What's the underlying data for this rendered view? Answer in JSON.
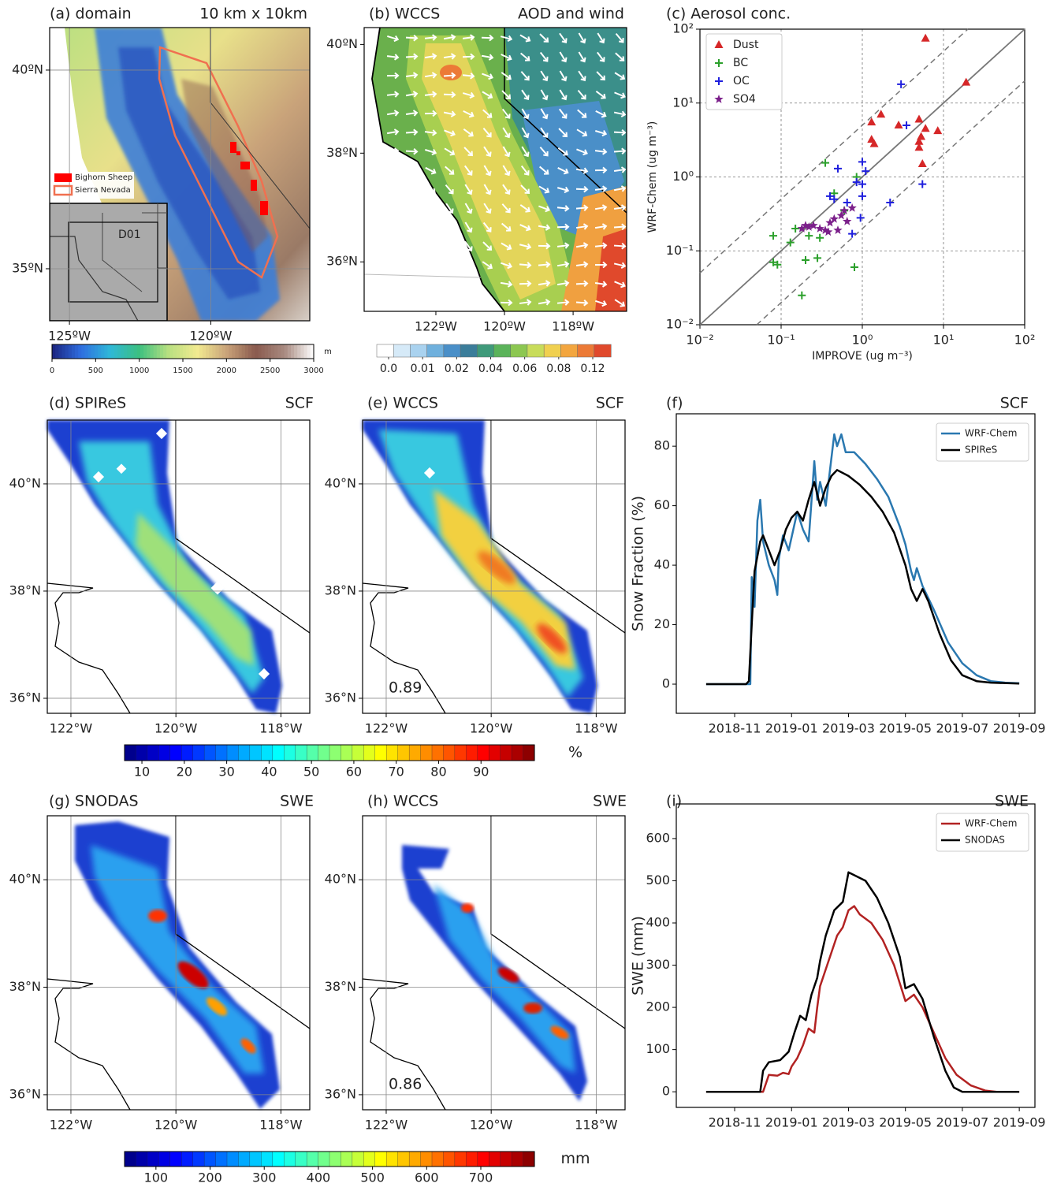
{
  "chart_data": [
    {
      "type": "map",
      "title": "(a) domain",
      "subtitle": "10 km x 10km",
      "xlim": [
        -125.7,
        -116.5
      ],
      "ylim": [
        33.69,
        41.07
      ],
      "grid": true,
      "xticks": [
        {
          "value": -125,
          "label": "125ºW"
        },
        {
          "value": -120,
          "label": "120ºW"
        }
      ],
      "yticks": [
        {
          "value": 40,
          "label": "40ºN"
        },
        {
          "value": 35,
          "label": "35ºN"
        }
      ],
      "legend": [
        {
          "name": "Bighorn Sheep",
          "color": "#ff0000",
          "marker": "fill"
        },
        {
          "name": "Sierra Nevada",
          "color": "#f07050",
          "marker": "outline"
        }
      ],
      "annotations": [
        "D01"
      ]
    },
    {
      "type": "map",
      "title": "(b) WCCS",
      "subtitle": "AOD and wind",
      "xlim": [
        -124.09,
        -116.44
      ],
      "ylim": [
        35.09,
        40.31
      ],
      "grid": false,
      "xticks": [
        {
          "value": -122,
          "label": "122ºW"
        },
        {
          "value": -120,
          "label": "120ºW"
        },
        {
          "value": -118,
          "label": "118ºW"
        }
      ],
      "yticks": [
        {
          "value": 40,
          "label": "40ºN"
        },
        {
          "value": 38,
          "label": "38ºN"
        },
        {
          "value": 36,
          "label": "36ºN"
        }
      ]
    },
    {
      "type": "scatter",
      "title": "(c) Aerosol conc.",
      "x_label": "IMPROVE (ug m⁻³)",
      "y_label": "WRF-Chem (ug m⁻³)",
      "log": true,
      "grid": true,
      "legend": "upper left",
      "xlim": [
        0.01,
        100
      ],
      "ylim": [
        0.01,
        100
      ],
      "xticks": [
        {
          "value": 0.01,
          "label": "10⁻²"
        },
        {
          "value": 0.1,
          "label": "10⁻¹"
        },
        {
          "value": 1,
          "label": "10⁰"
        },
        {
          "value": 10,
          "label": "10¹"
        },
        {
          "value": 100,
          "label": "10²"
        }
      ],
      "yticks": [
        {
          "value": 0.01,
          "label": "10⁻²"
        },
        {
          "value": 0.1,
          "label": "10⁻¹"
        },
        {
          "value": 1,
          "label": "10⁰"
        },
        {
          "value": 10,
          "label": "10¹"
        },
        {
          "value": 100,
          "label": "10²"
        }
      ],
      "series": [
        {
          "name": "Dust",
          "color": "#d62728",
          "marker": "triangle",
          "x": [
            6,
            19,
            1.3,
            1.7,
            1.3,
            1.4,
            2.8,
            5,
            5,
            5.3,
            6,
            8.5,
            5,
            5.5
          ],
          "values": [
            75,
            19,
            5.5,
            7,
            3.2,
            2.8,
            5,
            6,
            3,
            3.5,
            4.5,
            4.2,
            2.5,
            1.5
          ]
        },
        {
          "name": "BC",
          "color": "#2ca02c",
          "marker": "plus",
          "x": [
            0.08,
            0.08,
            0.09,
            0.13,
            0.15,
            0.18,
            0.2,
            0.22,
            0.28,
            0.3,
            0.35,
            0.45,
            0.6,
            0.8,
            0.85
          ],
          "values": [
            0.16,
            0.07,
            0.065,
            0.13,
            0.2,
            0.025,
            0.075,
            0.16,
            0.08,
            0.15,
            1.55,
            0.6,
            0.35,
            0.06,
            1.0
          ]
        },
        {
          "name": "OC",
          "color": "#1f1fdd",
          "marker": "plus",
          "x": [
            0.4,
            0.45,
            0.5,
            0.65,
            0.75,
            0.85,
            1.0,
            1.0,
            1.0,
            1.1,
            2.2,
            3,
            3.5,
            5.5,
            0.95
          ],
          "values": [
            0.55,
            0.5,
            1.3,
            0.45,
            0.17,
            0.85,
            0.8,
            0.55,
            1.6,
            1.2,
            0.45,
            18,
            5,
            0.8,
            0.28
          ]
        },
        {
          "name": "SO4",
          "color": "#7b1f8a",
          "marker": "star",
          "x": [
            0.18,
            0.2,
            0.22,
            0.25,
            0.3,
            0.35,
            0.4,
            0.45,
            0.5,
            0.55,
            0.6,
            0.65,
            0.75,
            0.38
          ],
          "values": [
            0.2,
            0.22,
            0.21,
            0.22,
            0.2,
            0.19,
            0.24,
            0.27,
            0.19,
            0.3,
            0.35,
            0.25,
            0.38,
            0.18
          ]
        }
      ]
    },
    {
      "type": "map",
      "title": "(d) SPIReS",
      "subtitle": "SCF",
      "xlim": [
        -122.45,
        -117.45
      ],
      "ylim": [
        35.72,
        41.19
      ],
      "grid": true,
      "xticks": [
        {
          "value": -122,
          "label": "122°W"
        },
        {
          "value": -120,
          "label": "120°W"
        },
        {
          "value": -118,
          "label": "118°W"
        }
      ],
      "yticks": [
        {
          "value": 40,
          "label": "40°N"
        },
        {
          "value": 38,
          "label": "38°N"
        },
        {
          "value": 36,
          "label": "36°N"
        }
      ]
    },
    {
      "type": "map",
      "title": "(e) WCCS",
      "subtitle": "SCF",
      "xlim": [
        -122.45,
        -117.45
      ],
      "ylim": [
        35.72,
        41.19
      ],
      "grid": true,
      "xticks": [
        {
          "value": -122,
          "label": "122°W"
        },
        {
          "value": -120,
          "label": "120°W"
        },
        {
          "value": -118,
          "label": "118°W"
        }
      ],
      "yticks": [
        {
          "value": 40,
          "label": "40°N"
        },
        {
          "value": 38,
          "label": "38°N"
        },
        {
          "value": 36,
          "label": "36°N"
        }
      ],
      "annotations": [
        "0.89"
      ]
    },
    {
      "type": "line",
      "title": "(f)",
      "subtitle": "SCF",
      "y_label": "Snow Fraction (%)",
      "legend": "upper right",
      "xlim": [
        7.95,
        20.55
      ],
      "ylim": [
        -9.8,
        90.9
      ],
      "xticks": [
        {
          "value": 10,
          "label": "2018-11"
        },
        {
          "value": 12,
          "label": "2019-01"
        },
        {
          "value": 14,
          "label": "2019-03"
        },
        {
          "value": 16,
          "label": "2019-05"
        },
        {
          "value": 18,
          "label": "2019-07"
        },
        {
          "value": 20,
          "label": "2019-09"
        }
      ],
      "yticks": [
        0,
        20,
        40,
        60,
        80
      ],
      "series": [
        {
          "name": "WRF-Chem",
          "color": "#2a78b0",
          "x": [
            9,
            10.55,
            10.6,
            10.7,
            10.8,
            10.9,
            11,
            11.2,
            11.4,
            11.5,
            11.55,
            11.7,
            11.9,
            12.2,
            12.4,
            12.6,
            12.8,
            12.9,
            13,
            13.2,
            13.35,
            13.5,
            13.6,
            13.75,
            13.9,
            14.2,
            14.6,
            15,
            15.4,
            15.8,
            16,
            16.2,
            16.3,
            16.4,
            16.6,
            17,
            17.5,
            18,
            18.5,
            19,
            19.5,
            20
          ],
          "values": [
            0,
            0,
            36,
            26,
            55,
            62,
            48,
            40,
            35,
            30,
            42,
            50,
            45,
            58,
            52,
            48,
            75,
            62,
            68,
            60,
            72,
            84,
            80,
            84,
            78,
            78,
            74,
            69,
            63,
            53,
            47,
            38,
            35,
            39,
            33,
            25,
            14,
            7,
            3,
            1,
            0.5,
            0.3
          ]
        },
        {
          "name": "SPIReS",
          "color": "#000000",
          "x": [
            9,
            10.4,
            10.5,
            10.6,
            10.7,
            10.9,
            11,
            11.2,
            11.4,
            11.6,
            11.8,
            12,
            12.2,
            12.4,
            12.6,
            12.8,
            13,
            13.2,
            13.4,
            13.6,
            14,
            14.4,
            14.8,
            15.2,
            15.6,
            16,
            16.2,
            16.4,
            16.6,
            16.8,
            17.2,
            17.6,
            18,
            18.5,
            19,
            20
          ],
          "values": [
            0,
            0,
            1,
            20,
            38,
            48,
            50,
            45,
            40,
            45,
            52,
            56,
            58,
            55,
            62,
            68,
            60,
            66,
            70,
            72,
            70,
            67,
            63,
            58,
            51,
            40,
            32,
            28,
            32,
            28,
            17,
            8,
            3,
            1,
            0.5,
            0.2
          ]
        }
      ]
    },
    {
      "type": "map",
      "title": "(g) SNODAS",
      "subtitle": "SWE",
      "xlim": [
        -122.45,
        -117.45
      ],
      "ylim": [
        35.72,
        41.19
      ],
      "grid": true,
      "xticks": [
        {
          "value": -122,
          "label": "122°W"
        },
        {
          "value": -120,
          "label": "120°W"
        },
        {
          "value": -118,
          "label": "118°W"
        }
      ],
      "yticks": [
        {
          "value": 40,
          "label": "40°N"
        },
        {
          "value": 38,
          "label": "38°N"
        },
        {
          "value": 36,
          "label": "36°N"
        }
      ]
    },
    {
      "type": "map",
      "title": "(h) WCCS",
      "subtitle": "SWE",
      "xlim": [
        -122.45,
        -117.45
      ],
      "ylim": [
        35.72,
        41.19
      ],
      "grid": true,
      "xticks": [
        {
          "value": -122,
          "label": "122°W"
        },
        {
          "value": -120,
          "label": "120°W"
        },
        {
          "value": -118,
          "label": "118°W"
        }
      ],
      "yticks": [
        {
          "value": 40,
          "label": "40°N"
        },
        {
          "value": 38,
          "label": "38°N"
        },
        {
          "value": 36,
          "label": "36°N"
        }
      ],
      "annotations": [
        "0.86"
      ]
    },
    {
      "type": "line",
      "title": "(i)",
      "subtitle": "SWE",
      "y_label": "SWE (mm)",
      "legend": "upper right",
      "xlim": [
        7.95,
        20.55
      ],
      "ylim": [
        -37,
        682
      ],
      "xticks": [
        {
          "value": 10,
          "label": "2018-11"
        },
        {
          "value": 12,
          "label": "2019-01"
        },
        {
          "value": 14,
          "label": "2019-03"
        },
        {
          "value": 16,
          "label": "2019-05"
        },
        {
          "value": 18,
          "label": "2019-07"
        },
        {
          "value": 20,
          "label": "2019-09"
        }
      ],
      "yticks": [
        0,
        100,
        200,
        300,
        400,
        500,
        600
      ],
      "series": [
        {
          "name": "WRF-Chem",
          "color": "#b22222",
          "x": [
            9,
            11,
            11.1,
            11.2,
            11.5,
            11.7,
            11.9,
            12,
            12.2,
            12.4,
            12.6,
            12.8,
            12.9,
            13,
            13.2,
            13.4,
            13.6,
            13.8,
            14,
            14.2,
            14.4,
            14.8,
            15.2,
            15.6,
            16,
            16.3,
            16.6,
            17,
            17.4,
            17.8,
            18.3,
            18.8,
            19.2,
            20
          ],
          "values": [
            0,
            0,
            20,
            40,
            38,
            45,
            42,
            60,
            80,
            110,
            150,
            140,
            200,
            250,
            290,
            330,
            370,
            390,
            430,
            440,
            420,
            400,
            360,
            300,
            215,
            230,
            200,
            140,
            80,
            40,
            15,
            3,
            0,
            0
          ]
        },
        {
          "name": "SNODAS",
          "color": "#000000",
          "x": [
            9,
            10.9,
            11,
            11.2,
            11.6,
            11.9,
            12.1,
            12.3,
            12.5,
            12.7,
            12.9,
            13,
            13.2,
            13.5,
            13.8,
            14,
            14.3,
            14.6,
            15,
            15.4,
            15.8,
            16,
            16.3,
            16.6,
            17,
            17.4,
            17.7,
            18,
            20
          ],
          "values": [
            0,
            0,
            50,
            70,
            75,
            95,
            140,
            180,
            170,
            230,
            270,
            310,
            370,
            430,
            450,
            520,
            510,
            500,
            460,
            400,
            320,
            245,
            255,
            220,
            130,
            50,
            10,
            0,
            0
          ]
        }
      ]
    },
    {
      "type": "colorbar",
      "label": "m",
      "lim": [
        0,
        3000
      ],
      "ticks": [
        0,
        500,
        1000,
        1500,
        2000,
        2500,
        3000
      ],
      "colors": [
        "#1a237e",
        "#2f6ee0",
        "#2fb8d8",
        "#3cc080",
        "#b8e080",
        "#f2ea90",
        "#c9a37a",
        "#8a5a4e",
        "#a88a80",
        "#ffffff"
      ]
    },
    {
      "type": "colorbar",
      "discrete": true,
      "ticks": [
        {
          "value": 0,
          "label": "0.0"
        },
        0.01,
        0.02,
        0.04,
        0.06,
        0.08,
        0.12
      ],
      "colors": [
        "#ffffff",
        "#d6eaf8",
        "#a9d2ef",
        "#6fb0dd",
        "#4a8fc8",
        "#3b7d9a",
        "#3f9a7a",
        "#5bb35a",
        "#8cc751",
        "#c8dc5a",
        "#f0d050",
        "#f3a63f",
        "#ec7a36",
        "#e0492c"
      ]
    },
    {
      "type": "colorbar",
      "label": "%",
      "lim": [
        5.9,
        102.6
      ],
      "ticks": [
        10,
        20,
        30,
        40,
        50,
        60,
        70,
        80,
        90
      ],
      "steps": 36,
      "colors": [
        "#00007f",
        "#0000ff",
        "#007fff",
        "#00ffff",
        "#7fff7f",
        "#ffff00",
        "#ff7f00",
        "#ff0000",
        "#7f0000"
      ]
    },
    {
      "type": "colorbar",
      "label": "mm",
      "lim": [
        42,
        799
      ],
      "ticks": [
        100,
        200,
        300,
        400,
        500,
        600,
        700
      ],
      "steps": 36,
      "colors": [
        "#00007f",
        "#0000ff",
        "#007fff",
        "#00ffff",
        "#7fff7f",
        "#ffff00",
        "#ff7f00",
        "#ff0000",
        "#7f0000"
      ]
    }
  ]
}
